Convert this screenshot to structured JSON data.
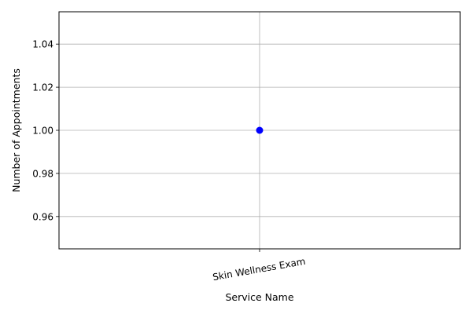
{
  "chart_data": {
    "type": "line",
    "title": "",
    "xlabel": "Service Name",
    "ylabel": "Number of Appointments",
    "categories": [
      "Skin Wellness Exam"
    ],
    "series": [
      {
        "values": [
          1
        ],
        "color": "#0000ff",
        "marker": "circle"
      }
    ],
    "ylim": [
      0.945,
      1.055
    ],
    "yticks": [
      "0.96",
      "0.98",
      "1.00",
      "1.02",
      "1.04"
    ],
    "grid": true,
    "legend": "none"
  }
}
